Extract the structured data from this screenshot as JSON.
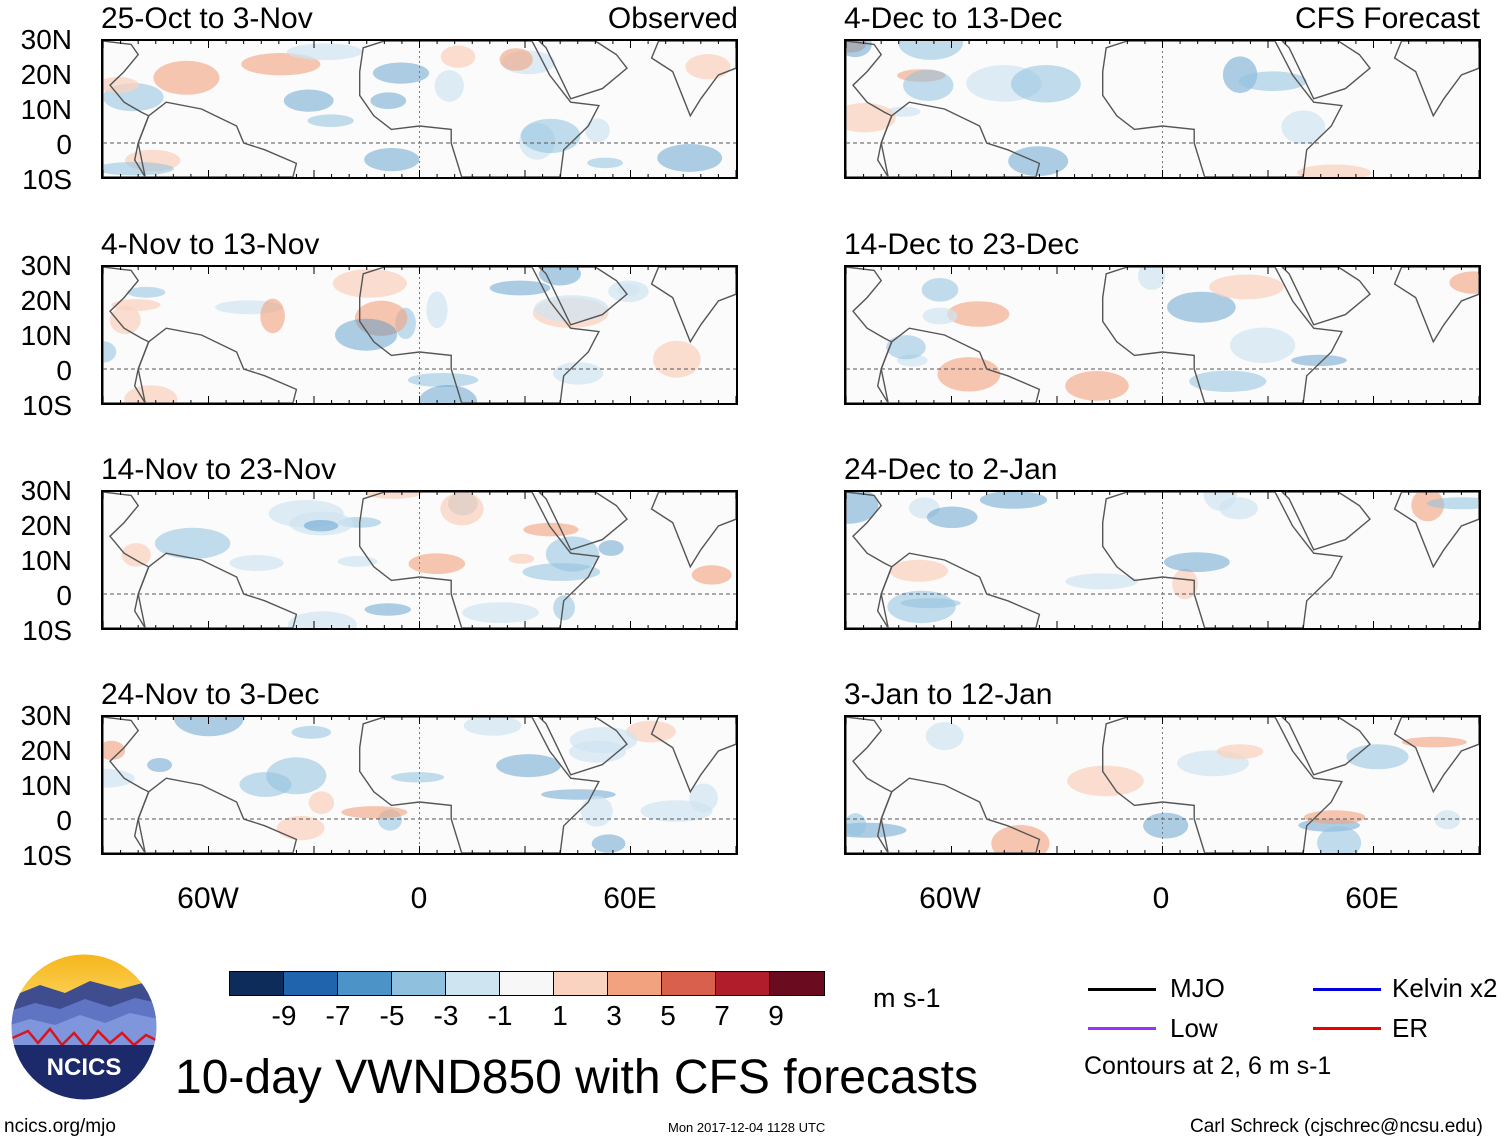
{
  "columns": {
    "left_tag": "Observed",
    "right_tag": "CFS Forecast"
  },
  "panels": {
    "left": [
      "25-Oct to 3-Nov",
      "4-Nov to 13-Nov",
      "14-Nov to 23-Nov",
      "24-Nov to 3-Dec"
    ],
    "right": [
      "4-Dec to 13-Dec",
      "14-Dec to 23-Dec",
      "24-Dec to 2-Jan",
      "3-Jan to 12-Jan"
    ]
  },
  "lat_labels": [
    "30N",
    "20N",
    "10N",
    "0",
    "10S"
  ],
  "lon_labels": [
    "60W",
    "0",
    "60E"
  ],
  "colorbar": {
    "ticks": [
      "-9",
      "-7",
      "-5",
      "-3",
      "-1",
      "1",
      "3",
      "5",
      "7",
      "9"
    ],
    "colors": [
      "#0d2c5a",
      "#1f64ad",
      "#4c93c8",
      "#8fc1de",
      "#cfe4f1",
      "#f7f7f7",
      "#f9d3c0",
      "#f2a27e",
      "#d9604d",
      "#b21d2b",
      "#6a0b20"
    ],
    "units": "m s-1"
  },
  "legend": {
    "items": [
      {
        "label": "MJO",
        "color": "#000000"
      },
      {
        "label": "Kelvin x2",
        "color": "#0000dd"
      },
      {
        "label": "Low",
        "color": "#9b30ff"
      },
      {
        "label": "ER",
        "color": "#ee0000"
      }
    ],
    "contours_note": "Contours at 2, 6 m s-1"
  },
  "title": "10-day VWND850 with CFS forecasts",
  "logo_text": "NCICS",
  "footer": {
    "site": "ncics.org/mjo",
    "timestamp": "Mon 2017-12-04 1128 UTC",
    "author": "Carl Schreck (cjschrec@ncsu.edu)"
  }
}
